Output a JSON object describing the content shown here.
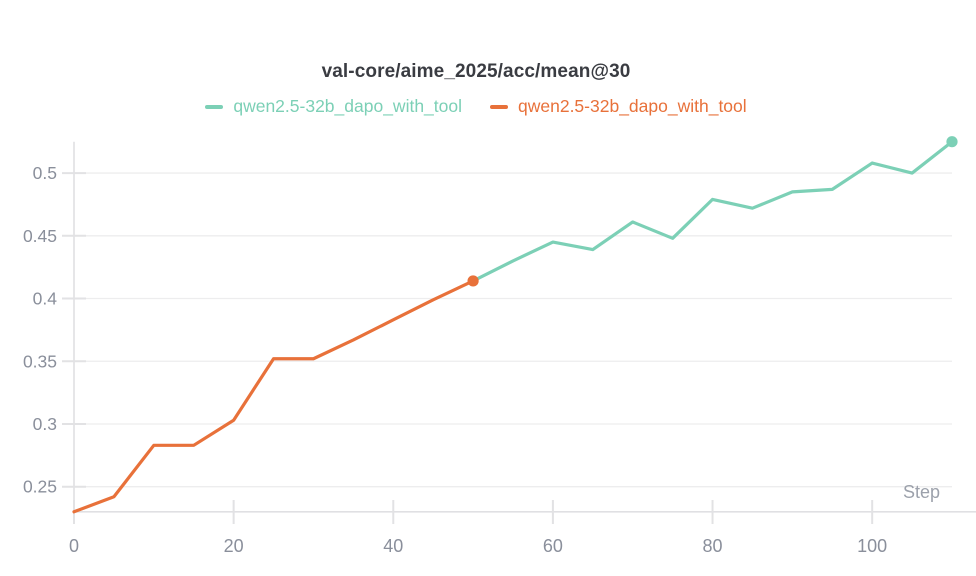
{
  "chart_data": {
    "type": "line",
    "title": "val-core/aime_2025/acc/mean@30",
    "xlabel": "Step",
    "ylabel": "",
    "xlim": [
      0,
      110
    ],
    "ylim": [
      0.23,
      0.525
    ],
    "x_ticks": [
      "0",
      "20",
      "40",
      "60",
      "80",
      "100"
    ],
    "x_tick_values": [
      0,
      20,
      40,
      60,
      80,
      100
    ],
    "y_ticks": [
      "0.25",
      "0.3",
      "0.35",
      "0.4",
      "0.45",
      "0.5"
    ],
    "y_tick_values": [
      0.25,
      0.3,
      0.35,
      0.4,
      0.45,
      0.5
    ],
    "grid": true,
    "legend_position": "top-center",
    "series": [
      {
        "name": "qwen2.5-32b_dapo_with_tool",
        "color": "#7cd0b6",
        "x": [
          50,
          55,
          60,
          65,
          70,
          75,
          80,
          85,
          90,
          95,
          100,
          105,
          110
        ],
        "y": [
          0.414,
          0.43,
          0.445,
          0.439,
          0.461,
          0.448,
          0.479,
          0.472,
          0.485,
          0.487,
          0.508,
          0.5,
          0.525
        ],
        "endpoint_marker": true
      },
      {
        "name": "qwen2.5-32b_dapo_with_tool",
        "color": "#e8713a",
        "x": [
          0,
          5,
          10,
          15,
          20,
          25,
          30,
          35,
          40,
          45,
          50
        ],
        "y": [
          0.23,
          0.242,
          0.283,
          0.283,
          0.303,
          0.352,
          0.352,
          0.367,
          0.383,
          0.399,
          0.414
        ],
        "endpoint_marker": true
      }
    ]
  },
  "style": {
    "grid_color": "#ededee",
    "axis_color": "#e0e0e3",
    "tick_color": "#e2e2e4",
    "tick_label_color": "#8a8f9b",
    "step_label_color": "#9ca1ab"
  }
}
